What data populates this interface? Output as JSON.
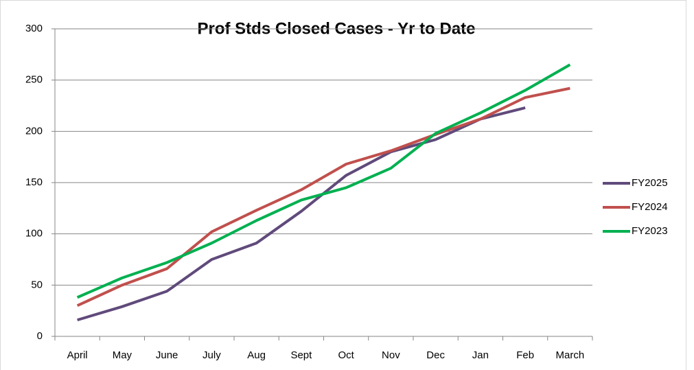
{
  "chart_data": {
    "type": "line",
    "title": "Prof Stds Closed Cases - Yr to Date",
    "categories": [
      "April",
      "May",
      "June",
      "July",
      "Aug",
      "Sept",
      "Oct",
      "Nov",
      "Dec",
      "Jan",
      "Feb",
      "March"
    ],
    "series": [
      {
        "name": "FY2025",
        "color": "#604a7b",
        "values": [
          16,
          29,
          44,
          75,
          91,
          122,
          157,
          180,
          192,
          212,
          223,
          null
        ]
      },
      {
        "name": "FY2024",
        "color": "#c0504d",
        "values": [
          30,
          50,
          66,
          102,
          123,
          143,
          168,
          181,
          197,
          212,
          233,
          242
        ]
      },
      {
        "name": "FY2023",
        "color": "#00b050",
        "values": [
          38,
          57,
          72,
          91,
          113,
          133,
          145,
          164,
          198,
          218,
          240,
          265
        ]
      }
    ],
    "ylim": [
      0,
      300
    ],
    "yticks": [
      0,
      50,
      100,
      150,
      200,
      250,
      300
    ],
    "grid": true,
    "legend": "right"
  }
}
